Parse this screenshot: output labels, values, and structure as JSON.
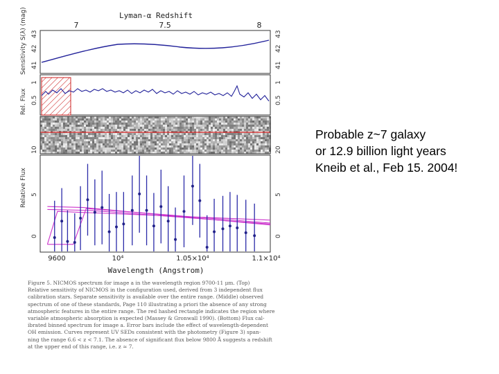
{
  "annotation": {
    "lines": [
      "Probable z~7 galaxy",
      "or 12.9 billion light years",
      "Kneib et al., Feb 15. 2004!"
    ]
  },
  "figure": {
    "top_axis_label": "Lyman-α Redshift",
    "top_ticks": [
      "7",
      "7.5",
      "8"
    ],
    "panel1_ylabel": "Sensitivity S(λ) (mag)",
    "panel1_ticks": [
      "41",
      "42",
      "43"
    ],
    "panel2_ylabel": "Rel. Flux",
    "panel2_ticks": [
      "0.5",
      "1"
    ],
    "panel3_ticks": [
      "10",
      "20"
    ],
    "panel4_ylabel": "Relative Flux",
    "panel4_ticks": [
      "0",
      "5"
    ],
    "xlabel": "Wavelength (Angstrom)",
    "x_ticks": [
      "9600",
      "10⁴",
      "1.05×10⁴",
      "1.1×10⁴"
    ],
    "caption": [
      "Figure 5. NICMOS spectrum for image a in the wavelength region 9700-11 μm. (Top)",
      "Relative sensitivity of NICMOS in the configuration used, derived from 3 independent flux",
      "calibration stars. Separate sensitivity is available over the entire range. (Middle) observed",
      "spectrum of one of these standards, Page 110 illustrating a priori the absence of any strong",
      "atmospheric features in the entire range. The red hashed rectangle indicates the region where",
      "variable atmospheric absorption is expected (Massey & Gronwall 1990). (Bottom) Flux cal-",
      "ibrated binned spectrum for image a. Error bars include the effect of wavelength-dependent",
      "OH emission. Curves represent UV SEDs consistent with the photometry (Figure 3) span-",
      "ning the range 6.6 < z < 7.1. The absence of significant flux below 9800 Å suggests a redshift",
      "at the upper end of this range, i.e. z ≃ 7."
    ]
  },
  "chart_data": {
    "type": "scatter",
    "xlabel": "Wavelength (Angstrom)",
    "ylabel": "Relative Flux",
    "xlim": [
      9600,
      11200
    ],
    "ylim": [
      0,
      10
    ],
    "x": [
      9700,
      9750,
      9790,
      9840,
      9880,
      9930,
      9980,
      10030,
      10080,
      10130,
      10180,
      10240,
      10290,
      10340,
      10390,
      10440,
      10490,
      10540,
      10600,
      10660,
      10710,
      10760,
      10810,
      10870,
      10920,
      10970,
      11030,
      11090
    ],
    "y": [
      1.5,
      3.2,
      1.1,
      1.0,
      3.5,
      5.4,
      4.1,
      4.6,
      2.1,
      2.6,
      2.9,
      4.3,
      6.0,
      4.3,
      2.7,
      4.7,
      3.2,
      1.3,
      4.2,
      6.8,
      5.3,
      0.5,
      2.1,
      2.4,
      2.7,
      2.5,
      2.0,
      1.7
    ],
    "err": [
      3.8,
      3.4,
      3.2,
      3.0,
      3.3,
      3.7,
      3.4,
      3.8,
      3.9,
      3.6,
      3.3,
      3.6,
      4.0,
      3.6,
      3.4,
      3.8,
      3.6,
      3.3,
      3.7,
      4.0,
      3.8,
      3.3,
      3.4,
      3.4,
      3.5,
      3.4,
      3.4,
      3.3
    ]
  }
}
